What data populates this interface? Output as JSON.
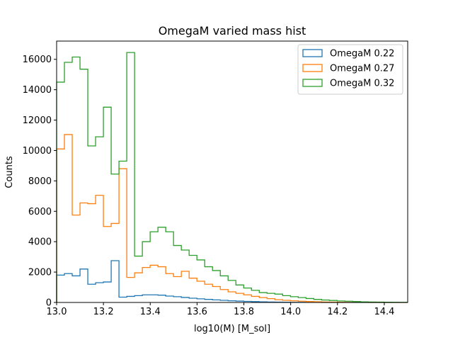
{
  "chart_data": {
    "type": "histogram",
    "title": "OmegaM varied mass hist",
    "xlabel": "log10(M) [M_sol]",
    "ylabel": "Counts",
    "xlim": [
      13.0,
      14.5
    ],
    "ylim": [
      0,
      17200
    ],
    "bin_width": 0.0333,
    "xticks": [
      "13.0",
      "13.2",
      "13.4",
      "13.6",
      "13.8",
      "14.0",
      "14.2",
      "14.4"
    ],
    "yticks": [
      "0",
      "2000",
      "4000",
      "6000",
      "8000",
      "10000",
      "12000",
      "14000",
      "16000"
    ],
    "legend_position": "upper-right",
    "grid": false,
    "series": [
      {
        "name": "OmegaM 0.22",
        "color": "#1f77b4",
        "values": [
          1800,
          1900,
          1750,
          2200,
          1200,
          1300,
          1350,
          2750,
          350,
          400,
          450,
          500,
          500,
          480,
          420,
          380,
          330,
          280,
          240,
          200,
          170,
          140,
          110,
          90,
          70,
          55,
          40,
          30,
          20,
          15,
          10,
          8,
          6,
          4,
          3,
          2,
          2,
          1,
          1,
          1,
          0,
          0,
          0,
          0,
          0
        ]
      },
      {
        "name": "OmegaM 0.27",
        "color": "#ff7f0e",
        "values": [
          10100,
          11050,
          5750,
          6550,
          6500,
          7050,
          5000,
          5200,
          8800,
          1650,
          1950,
          2300,
          2450,
          2350,
          1900,
          1700,
          2050,
          1600,
          1400,
          1200,
          1050,
          850,
          700,
          600,
          500,
          400,
          320,
          250,
          180,
          140,
          110,
          80,
          60,
          45,
          30,
          20,
          15,
          10,
          8,
          5,
          3,
          2,
          1,
          1,
          0
        ]
      },
      {
        "name": "OmegaM 0.32",
        "color": "#2ca02c",
        "values": [
          14500,
          15800,
          16150,
          15350,
          10300,
          10900,
          12850,
          8450,
          9300,
          16450,
          3050,
          4000,
          4650,
          4950,
          4650,
          3750,
          3450,
          3100,
          2800,
          2350,
          2100,
          1750,
          1450,
          1150,
          950,
          800,
          650,
          600,
          550,
          450,
          380,
          320,
          260,
          200,
          160,
          130,
          100,
          80,
          60,
          40,
          30,
          20,
          15,
          10,
          5
        ]
      }
    ]
  }
}
